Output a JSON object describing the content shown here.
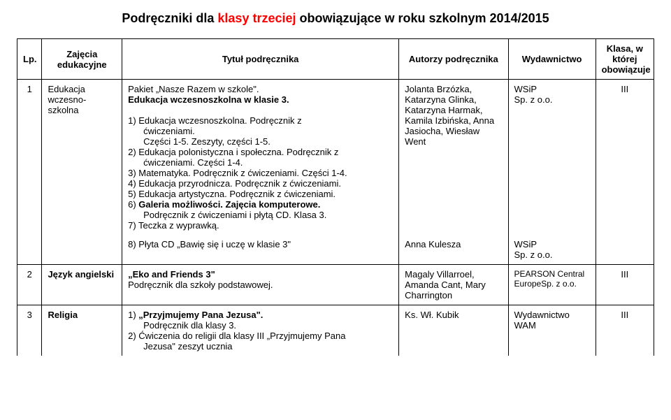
{
  "title_plain_1": "Podręczniki dla ",
  "title_hl": "klasy trzeciej",
  "title_plain_2": " obowiązujące w roku szkolnym 2014/2015",
  "headers": {
    "lp": "Lp.",
    "subject": "Zajęcia edukacyjne",
    "book_title": "Tytuł podręcznika",
    "authors": "Autorzy podręcznika",
    "publisher": "Wydawnictwo",
    "class": "Klasa, w której obowiązuje"
  },
  "row1_top": {
    "lp": "1",
    "subject": "Edukacja wczesno-szkolna",
    "book": {
      "l1": "Pakiet „Nasze Razem w szkole\".",
      "l2": "Edukacja wczesnoszkolna w klasie 3.",
      "l3a": "1) Edukacja wczesnoszkolna. Podręcznik z",
      "l3b": "ćwiczeniami.",
      "l3c": "Części 1-5. Zeszyty, części 1-5.",
      "l4a": "2) Edukacja polonistyczna i społeczna. Podręcznik z",
      "l4b": "ćwiczeniami. Części 1-4.",
      "l5": "3) Matematyka. Podręcznik  z ćwiczeniami. Części 1-4.",
      "l6": "4) Edukacja przyrodnicza. Podręcznik z ćwiczeniami.",
      "l7": "5) Edukacja artystyczna. Podręcznik z ćwiczeniami.",
      "l8a": "6) Galeria możliwości. Zajęcia komputerowe.",
      "l8b": "Podręcznik z ćwiczeniami i płytą CD. Klasa 3.",
      "l9": "7) Teczka z wyprawką."
    },
    "authors": "Jolanta Brzózka, Katarzyna Glinka, Katarzyna Harmak, Kamila Izbińska, Anna Jasiocha, Wiesław Went",
    "publisher": "WSiP\nSp. z o.o.",
    "class": "III"
  },
  "row1_bot": {
    "book": "8) Płyta CD „Bawię się i uczę w klasie 3\"",
    "authors": "Anna Kulesza",
    "publisher": "WSiP\nSp. z o.o."
  },
  "row2": {
    "lp": "2",
    "subject": "Język angielski",
    "book_l1": "„Eko and Friends 3\"",
    "book_l2": "Podręcznik dla szkoły podstawowej.",
    "authors": "Magaly Villarroel, Amanda Cant, Mary Charrington",
    "publisher": "PEARSON Central EuropeSp. z o.o.",
    "class": "III"
  },
  "row3": {
    "lp": "3",
    "subject": "Religia",
    "book_l1a": "1) „Przyjmujemy Pana Jezusa\".",
    "book_l1b": "Podręcznik dla klasy 3.",
    "book_l2a": "2) Ćwiczenia do religii dla klasy III „Przyjmujemy Pana",
    "book_l2b": "Jezusa\"  zeszyt ucznia",
    "authors": "Ks. Wł. Kubik",
    "publisher": "Wydawnictwo WAM",
    "class": "III"
  }
}
